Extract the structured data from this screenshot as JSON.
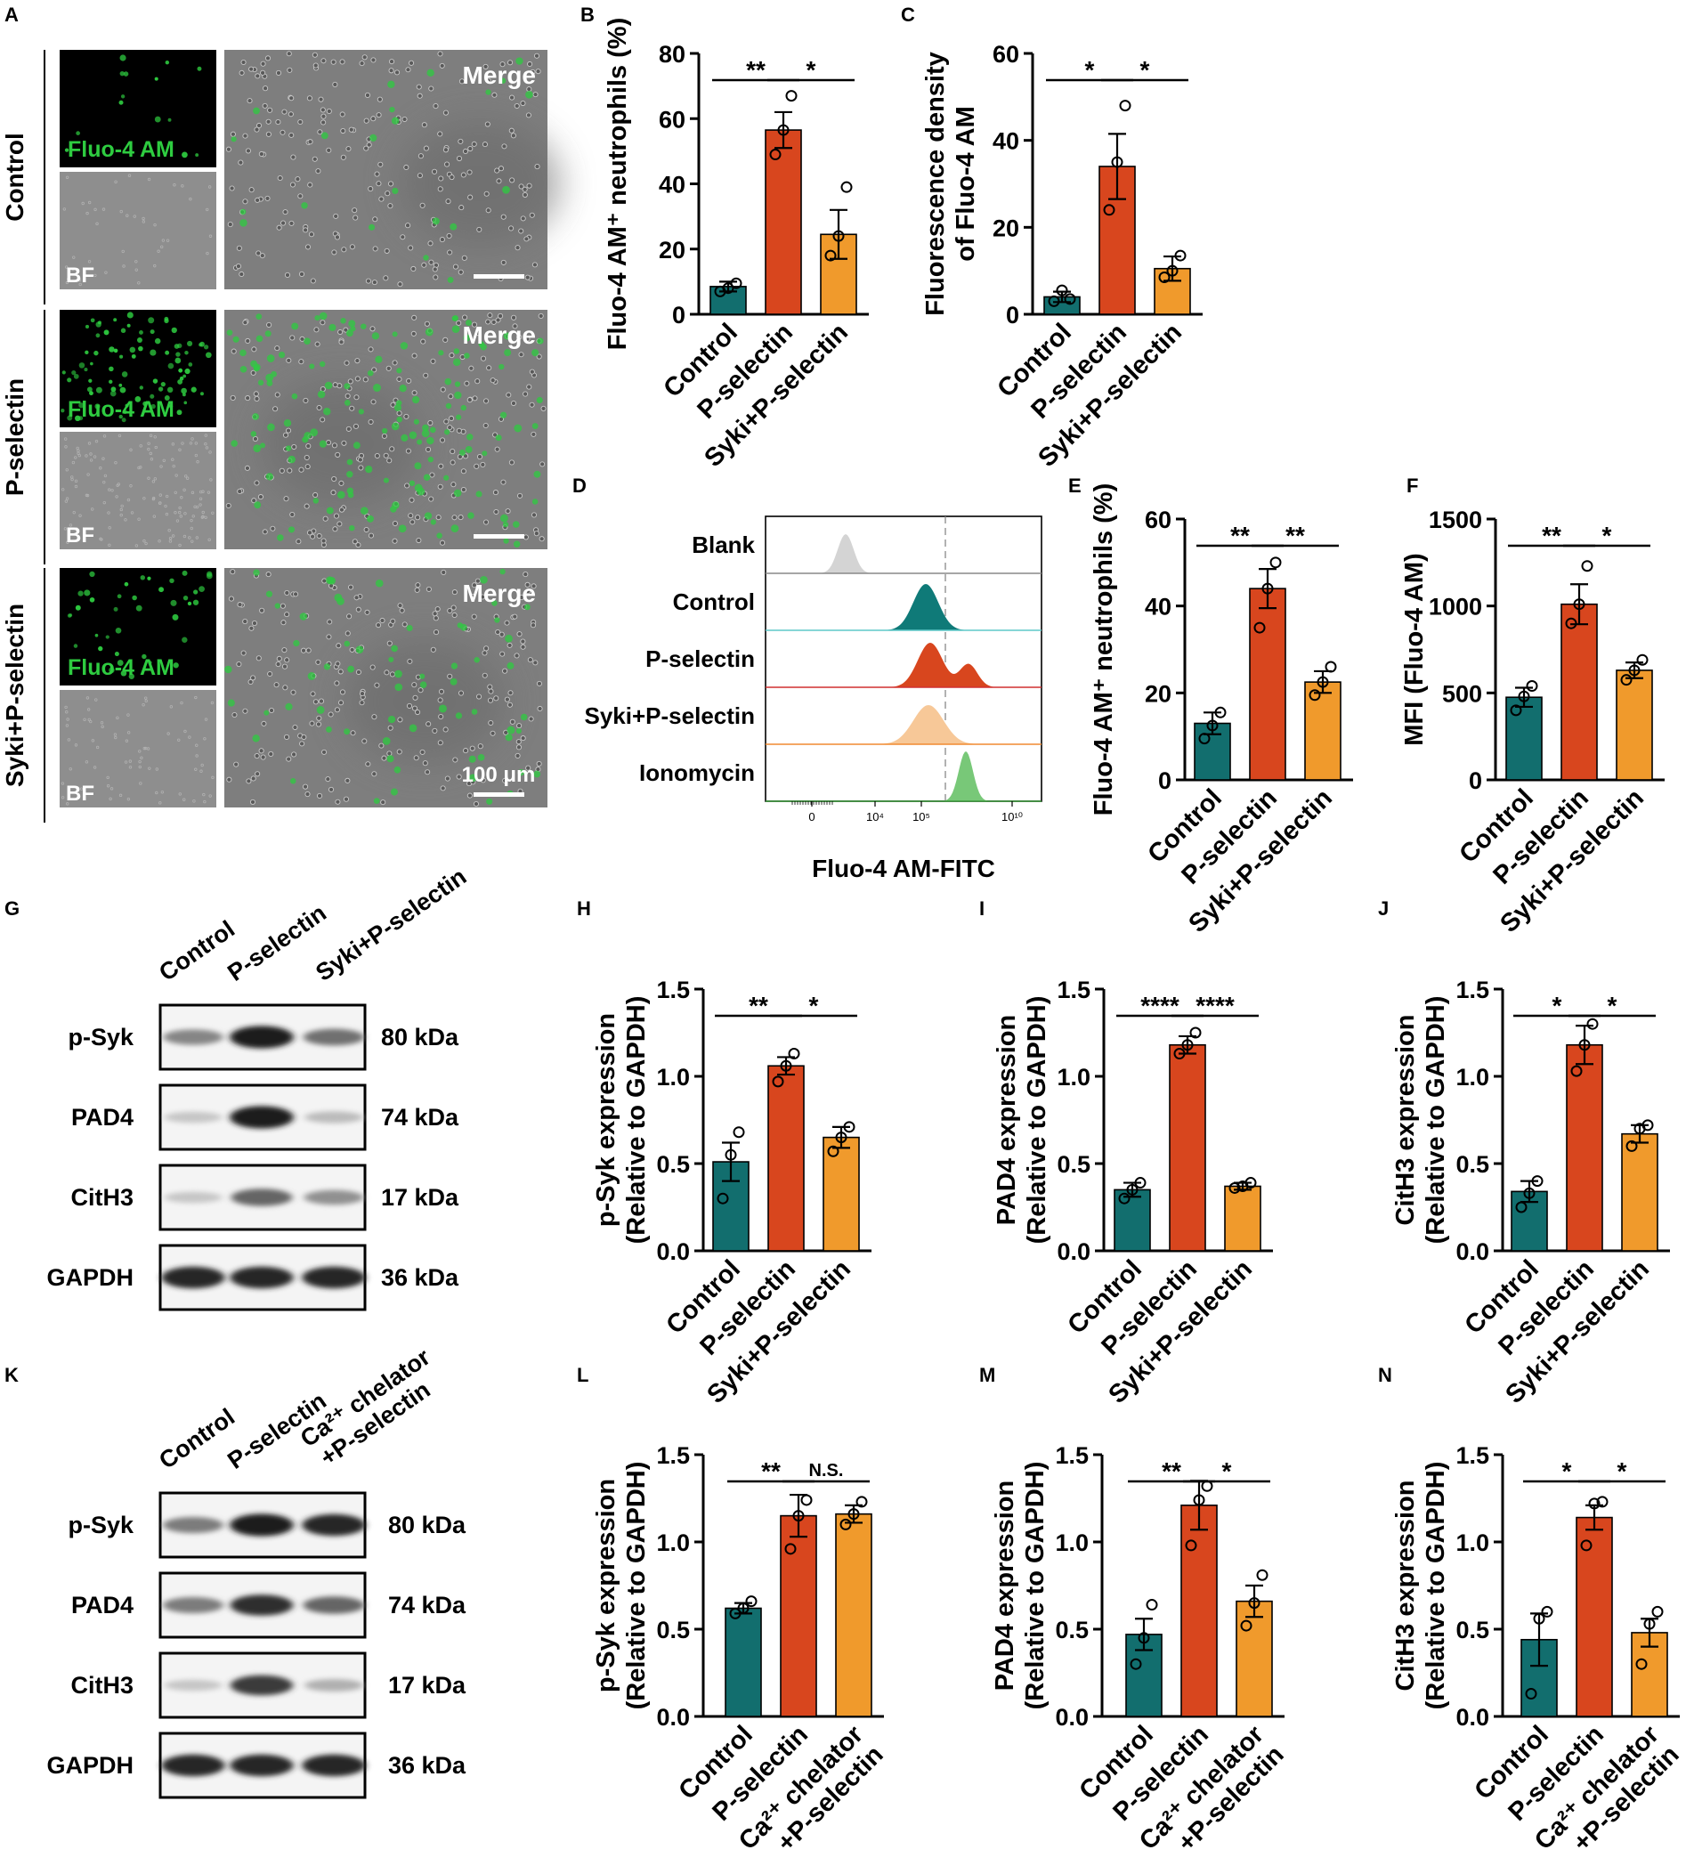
{
  "colors": {
    "control": "#126e6e",
    "pselectin": "#d8461e",
    "syki": "#f09a2c",
    "fluo": "#2ecc40",
    "blank_fill": "#d4d4d4",
    "flow_control_fill": "#0f7a78",
    "flow_control_line": "#5ec8c8",
    "flow_psel_fill": "#d8461e",
    "flow_psel_line": "#d03030",
    "flow_syki_fill": "#f7c898",
    "flow_syki_line": "#f08a30",
    "flow_iono_fill": "#78c878"
  },
  "microscopy": {
    "panel_letter": "A",
    "rows": [
      {
        "label": "Control",
        "fluo_label": "Fluo-4 AM",
        "bf_label": "BF",
        "merge_label": "Merge",
        "cell_density": "low"
      },
      {
        "label": "P-selectin",
        "fluo_label": "Fluo-4 AM",
        "bf_label": "BF",
        "merge_label": "Merge",
        "cell_density": "high"
      },
      {
        "label": "Syki+P-selectin",
        "fluo_label": "Fluo-4 AM",
        "bf_label": "BF",
        "merge_label": "Merge",
        "cell_density": "medium"
      }
    ],
    "scale_bar": "100 μm"
  },
  "flow": {
    "panel_letter": "D",
    "xlabel": "Fluo-4 AM-FITC",
    "ticks": [
      "0",
      "10⁴",
      "10⁵",
      "10¹⁰"
    ],
    "rows": [
      {
        "label": "Blank",
        "icon": "single-peak"
      },
      {
        "label": "Control",
        "icon": "single-peak"
      },
      {
        "label": "P-selectin",
        "icon": "double-peak"
      },
      {
        "label": "Syki+P-selectin",
        "icon": "single-peak"
      },
      {
        "label": "Ionomycin",
        "icon": "single-peak"
      }
    ]
  },
  "blots": [
    {
      "panel_letter": "G",
      "lanes": [
        "Control",
        "P-selectin",
        "Syki+P-selectin"
      ],
      "rows": [
        {
          "protein": "p-Syk",
          "kda": "80 kDa",
          "intensity": [
            0.45,
            0.95,
            0.55
          ]
        },
        {
          "protein": "PAD4",
          "kda": "74 kDa",
          "intensity": [
            0.15,
            0.95,
            0.2
          ]
        },
        {
          "protein": "CitH3",
          "kda": "17 kDa",
          "intensity": [
            0.15,
            0.6,
            0.4
          ]
        },
        {
          "protein": "GAPDH",
          "kda": "36 kDa",
          "intensity": [
            0.9,
            0.9,
            0.9
          ]
        }
      ]
    },
    {
      "panel_letter": "K",
      "lanes": [
        "Control",
        "P-selectin",
        "Ca²⁺ chelator\n+P-selectin"
      ],
      "rows": [
        {
          "protein": "p-Syk",
          "kda": "80 kDa",
          "intensity": [
            0.5,
            0.95,
            0.9
          ]
        },
        {
          "protein": "PAD4",
          "kda": "74 kDa",
          "intensity": [
            0.5,
            0.85,
            0.6
          ]
        },
        {
          "protein": "CitH3",
          "kda": "17 kDa",
          "intensity": [
            0.15,
            0.8,
            0.25
          ]
        },
        {
          "protein": "GAPDH",
          "kda": "36 kDa",
          "intensity": [
            0.9,
            0.9,
            0.9
          ]
        }
      ]
    }
  ],
  "chart_data": [
    {
      "panel": "B",
      "type": "bar",
      "ylabel": "Fluo-4 AM⁺ neutrophils (%)",
      "categories": [
        "Control",
        "P-selectin",
        "Syki+P-selectin"
      ],
      "values": [
        8.5,
        56.5,
        24.5
      ],
      "errors": [
        1.5,
        5.5,
        7.5
      ],
      "points": [
        [
          7,
          8,
          9.5
        ],
        [
          49,
          56.5,
          67
        ],
        [
          18,
          24,
          39
        ]
      ],
      "ylim": [
        0,
        80
      ],
      "yticks": [
        "0",
        "20",
        "40",
        "60",
        "80"
      ],
      "sig": [
        {
          "from": 0,
          "to": 1,
          "text": "**"
        },
        {
          "from": 1,
          "to": 2,
          "text": "*"
        }
      ]
    },
    {
      "panel": "C",
      "type": "bar",
      "ylabel": "Fluorescence density|of Fluo-4 AM",
      "categories": [
        "Control",
        "P-selectin",
        "Syki+P-selectin"
      ],
      "values": [
        4,
        34,
        10.5
      ],
      "errors": [
        1.2,
        7.5,
        2.8
      ],
      "points": [
        [
          3,
          5.5,
          3.5
        ],
        [
          24,
          35,
          48
        ],
        [
          8.5,
          10,
          13.5
        ]
      ],
      "ylim": [
        0,
        60
      ],
      "yticks": [
        "0",
        "20",
        "40",
        "60"
      ],
      "sig": [
        {
          "from": 0,
          "to": 1,
          "text": "*"
        },
        {
          "from": 1,
          "to": 2,
          "text": "*"
        }
      ]
    },
    {
      "panel": "E",
      "type": "bar",
      "ylabel": "Fluo-4 AM⁺ neutrophils (%)",
      "categories": [
        "Control",
        "P-selectin",
        "Syki+P-selectin"
      ],
      "values": [
        13,
        44,
        22.5
      ],
      "errors": [
        2.5,
        4.5,
        2.5
      ],
      "points": [
        [
          9.5,
          12.5,
          15.5
        ],
        [
          35,
          44,
          50
        ],
        [
          19.5,
          22.5,
          26
        ]
      ],
      "ylim": [
        0,
        60
      ],
      "yticks": [
        "0",
        "20",
        "40",
        "60"
      ],
      "sig": [
        {
          "from": 0,
          "to": 1,
          "text": "**"
        },
        {
          "from": 1,
          "to": 2,
          "text": "**"
        }
      ]
    },
    {
      "panel": "F",
      "type": "bar",
      "ylabel": "MFI (Fluo-4 AM)",
      "categories": [
        "Control",
        "P-selectin",
        "Syki+P-selectin"
      ],
      "values": [
        475,
        1010,
        630
      ],
      "errors": [
        55,
        115,
        45
      ],
      "points": [
        [
          400,
          480,
          540
        ],
        [
          900,
          1010,
          1230
        ],
        [
          575,
          630,
          690
        ]
      ],
      "ylim": [
        0,
        1500
      ],
      "yticks": [
        "0",
        "500",
        "1000",
        "1500"
      ],
      "sig": [
        {
          "from": 0,
          "to": 1,
          "text": "**"
        },
        {
          "from": 1,
          "to": 2,
          "text": "*"
        }
      ]
    },
    {
      "panel": "H",
      "type": "bar",
      "ylabel": "p-Syk expression|(Relative to GAPDH)",
      "categories": [
        "Control",
        "P-selectin",
        "Syki+P-selectin"
      ],
      "values": [
        0.51,
        1.06,
        0.65
      ],
      "errors": [
        0.11,
        0.05,
        0.06
      ],
      "points": [
        [
          0.3,
          0.55,
          0.68
        ],
        [
          0.97,
          1.06,
          1.13
        ],
        [
          0.57,
          0.65,
          0.71
        ]
      ],
      "ylim": [
        0,
        1.5
      ],
      "yticks": [
        "0.0",
        "0.5",
        "1.0",
        "1.5"
      ],
      "sig": [
        {
          "from": 0,
          "to": 1,
          "text": "**"
        },
        {
          "from": 1,
          "to": 2,
          "text": "*"
        }
      ]
    },
    {
      "panel": "I",
      "type": "bar",
      "ylabel": "PAD4 expression|(Relative to GAPDH)",
      "categories": [
        "Control",
        "P-selectin",
        "Syki+P-selectin"
      ],
      "values": [
        0.35,
        1.18,
        0.37
      ],
      "errors": [
        0.04,
        0.05,
        0.02
      ],
      "points": [
        [
          0.3,
          0.35,
          0.39
        ],
        [
          1.13,
          1.18,
          1.25
        ],
        [
          0.36,
          0.37,
          0.39
        ]
      ],
      "ylim": [
        0,
        1.5
      ],
      "yticks": [
        "0.0",
        "0.5",
        "1.0",
        "1.5"
      ],
      "sig": [
        {
          "from": 0,
          "to": 1,
          "text": "****"
        },
        {
          "from": 1,
          "to": 2,
          "text": "****"
        }
      ]
    },
    {
      "panel": "J",
      "type": "bar",
      "ylabel": "CitH3 expression|(Relative to GAPDH)",
      "categories": [
        "Control",
        "P-selectin",
        "Syki+P-selectin"
      ],
      "values": [
        0.34,
        1.18,
        0.67
      ],
      "errors": [
        0.06,
        0.11,
        0.05
      ],
      "points": [
        [
          0.25,
          0.33,
          0.4
        ],
        [
          1.03,
          1.18,
          1.3
        ],
        [
          0.6,
          0.7,
          0.72
        ]
      ],
      "ylim": [
        0,
        1.5
      ],
      "yticks": [
        "0.0",
        "0.5",
        "1.0",
        "1.5"
      ],
      "sig": [
        {
          "from": 0,
          "to": 1,
          "text": "*"
        },
        {
          "from": 1,
          "to": 2,
          "text": "*"
        }
      ]
    },
    {
      "panel": "L",
      "type": "bar",
      "ylabel": "p-Syk expression|(Relative to GAPDH)",
      "categories": [
        "Control",
        "P-selectin",
        "Ca²⁺ chelator|+P-selectin"
      ],
      "values": [
        0.62,
        1.15,
        1.16
      ],
      "errors": [
        0.03,
        0.12,
        0.05
      ],
      "points": [
        [
          0.59,
          0.62,
          0.66
        ],
        [
          0.96,
          1.15,
          1.24
        ],
        [
          1.1,
          1.16,
          1.23
        ]
      ],
      "ylim": [
        0,
        1.5
      ],
      "yticks": [
        "0.0",
        "0.5",
        "1.0",
        "1.5"
      ],
      "sig": [
        {
          "from": 0,
          "to": 1,
          "text": "**"
        },
        {
          "from": 1,
          "to": 2,
          "text": "N.S."
        }
      ]
    },
    {
      "panel": "M",
      "type": "bar",
      "ylabel": "PAD4 expression|(Relative to GAPDH)",
      "categories": [
        "Control",
        "P-selectin",
        "Ca²⁺ chelator|+P-selectin"
      ],
      "values": [
        0.47,
        1.21,
        0.66
      ],
      "errors": [
        0.09,
        0.14,
        0.09
      ],
      "points": [
        [
          0.3,
          0.45,
          0.64
        ],
        [
          0.98,
          1.24,
          1.32
        ],
        [
          0.52,
          0.65,
          0.81
        ]
      ],
      "ylim": [
        0,
        1.5
      ],
      "yticks": [
        "0.0",
        "0.5",
        "1.0",
        "1.5"
      ],
      "sig": [
        {
          "from": 0,
          "to": 1,
          "text": "**"
        },
        {
          "from": 1,
          "to": 2,
          "text": "*"
        }
      ]
    },
    {
      "panel": "N",
      "type": "bar",
      "ylabel": "CitH3 expression|(Relative to GAPDH)",
      "categories": [
        "Control",
        "P-selectin",
        "Ca²⁺ chelator|+P-selectin"
      ],
      "values": [
        0.44,
        1.14,
        0.48
      ],
      "errors": [
        0.15,
        0.07,
        0.08
      ],
      "points": [
        [
          0.13,
          0.56,
          0.6
        ],
        [
          0.98,
          1.22,
          1.23
        ],
        [
          0.3,
          0.53,
          0.6
        ]
      ],
      "ylim": [
        0,
        1.5
      ],
      "yticks": [
        "0.0",
        "0.5",
        "1.0",
        "1.5"
      ],
      "sig": [
        {
          "from": 0,
          "to": 1,
          "text": "*"
        },
        {
          "from": 1,
          "to": 2,
          "text": "*"
        }
      ]
    }
  ]
}
